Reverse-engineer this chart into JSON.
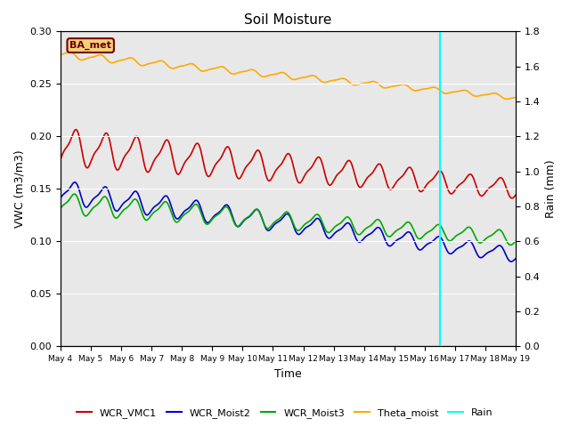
{
  "title": "Soil Moisture",
  "xlabel": "Time",
  "ylabel_left": "VWC (m3/m3)",
  "ylabel_right": "Rain (mm)",
  "xlim_days": [
    0,
    15
  ],
  "ylim_left": [
    0.0,
    0.3
  ],
  "ylim_right": [
    0.0,
    1.8
  ],
  "yticks_left": [
    0.0,
    0.05,
    0.1,
    0.15,
    0.2,
    0.25,
    0.3
  ],
  "yticks_right": [
    0.0,
    0.2,
    0.4,
    0.6,
    0.8,
    1.0,
    1.2,
    1.4,
    1.6,
    1.8
  ],
  "xtick_labels": [
    "May 4",
    "May 5",
    "May 6",
    "May 7",
    "May 8",
    "May 9",
    "May 10",
    "May 11",
    "May 12",
    "May 13",
    "May 14",
    "May 15",
    "May 16",
    "May 17",
    "May 18",
    "May 19"
  ],
  "vline_day": 12.5,
  "vline_color": "cyan",
  "background_color": "#e8e8e8",
  "station_label": "BA_met",
  "colors": {
    "WCR_VMC1": "#cc0000",
    "WCR_Moist2": "#0000cc",
    "WCR_Moist3": "#00aa00",
    "Theta_moist": "#ffaa00",
    "Rain": "cyan"
  },
  "series": {
    "WCR_VMC1": {
      "base_start": 0.19,
      "base_end": 0.15,
      "amp_start": 0.016,
      "amp_end": 0.008,
      "freq": 1.0,
      "phase": -1.2
    },
    "WCR_Moist2": {
      "base_start": 0.147,
      "base_end": 0.087,
      "amp_start": 0.01,
      "amp_end": 0.006,
      "freq": 1.0,
      "phase": -1.0
    },
    "WCR_Moist3": {
      "base_start": 0.136,
      "base_end": 0.103,
      "amp_start": 0.009,
      "amp_end": 0.006,
      "freq": 1.0,
      "phase": -0.9
    },
    "Theta_moist": {
      "base_start": 0.278,
      "base_end": 0.237,
      "amp_start": 0.003,
      "amp_end": 0.002,
      "freq": 1.0,
      "phase": 0.0
    }
  },
  "figsize": [
    6.4,
    4.8
  ],
  "dpi": 100
}
